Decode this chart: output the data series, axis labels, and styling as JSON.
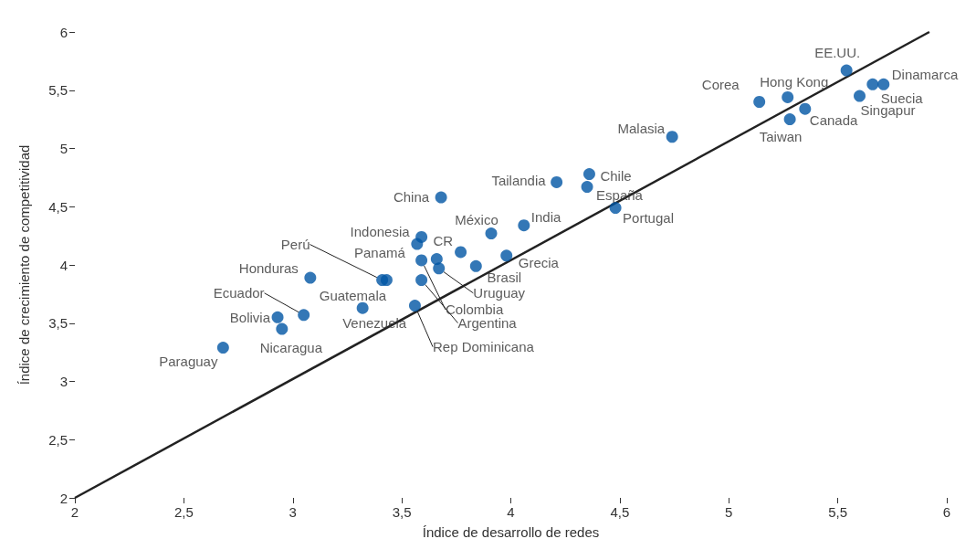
{
  "chart_data": {
    "type": "scatter",
    "xlabel": "Índice de desarrollo de redes",
    "ylabel": "Índice de crecimiento de competitividad",
    "xlim": [
      2,
      6
    ],
    "ylim": [
      2,
      6
    ],
    "xticks": [
      2,
      {
        "value": 2.5,
        "label": "2,5"
      },
      3,
      {
        "value": 3.5,
        "label": "3,5"
      },
      4,
      {
        "value": 4.5,
        "label": "4,5"
      },
      5,
      {
        "value": 5.5,
        "label": "5,5"
      },
      6
    ],
    "yticks": [
      2,
      {
        "value": 2.5,
        "label": "2,5"
      },
      3,
      {
        "value": 3.5,
        "label": "3,5"
      },
      4,
      {
        "value": 4.5,
        "label": "4,5"
      },
      5,
      {
        "value": 5.5,
        "label": "5,5"
      },
      6
    ],
    "grid": false,
    "marker": "circle",
    "series": [
      {
        "color": "#0055a4",
        "x": [
          2.68,
          2.93,
          2.95,
          3.05,
          3.08,
          3.32,
          3.41,
          3.43,
          3.59,
          3.57,
          3.68,
          3.66,
          3.59,
          3.59,
          3.67,
          3.56,
          3.84,
          3.77,
          3.91,
          4.06,
          3.98,
          4.21,
          4.36,
          4.35,
          4.48,
          4.74,
          5.14,
          5.27,
          5.28,
          5.35,
          5.54,
          5.6,
          5.66,
          5.71
        ],
        "values": [
          3.29,
          3.55,
          3.45,
          3.57,
          3.89,
          3.63,
          3.87,
          3.87,
          4.24,
          4.18,
          4.58,
          4.05,
          4.04,
          3.87,
          3.97,
          3.65,
          3.99,
          4.11,
          4.27,
          4.34,
          4.08,
          4.71,
          4.78,
          4.67,
          4.49,
          5.1,
          5.4,
          5.44,
          5.25,
          5.34,
          5.67,
          5.45,
          5.55,
          5.55
        ],
        "value_labels": [
          "Paraguay",
          "Bolivia",
          "Nicaragua",
          "Ecuador",
          "Honduras",
          "Venezuela",
          "Perú",
          "Guatemala",
          "Indonesia",
          "Panamá",
          "China",
          "CR",
          "Colombia",
          "Argentina",
          "Uruguay",
          "Rep Dominicana",
          "Brasil",
          null,
          "México",
          "India",
          "Grecia",
          "Tailandia",
          "Chile",
          "España",
          "Portugal",
          "Malasia",
          "Corea",
          "Hong Kong",
          "Taiwan",
          "Canada",
          "EE.UU.",
          "Singapur",
          "Suecia",
          "Dinamarca"
        ]
      },
      {
        "type": "line",
        "color": "#222222",
        "marker": "none",
        "line_style": "solid",
        "x": [
          2,
          5.92
        ],
        "values": [
          2,
          6
        ]
      }
    ]
  }
}
